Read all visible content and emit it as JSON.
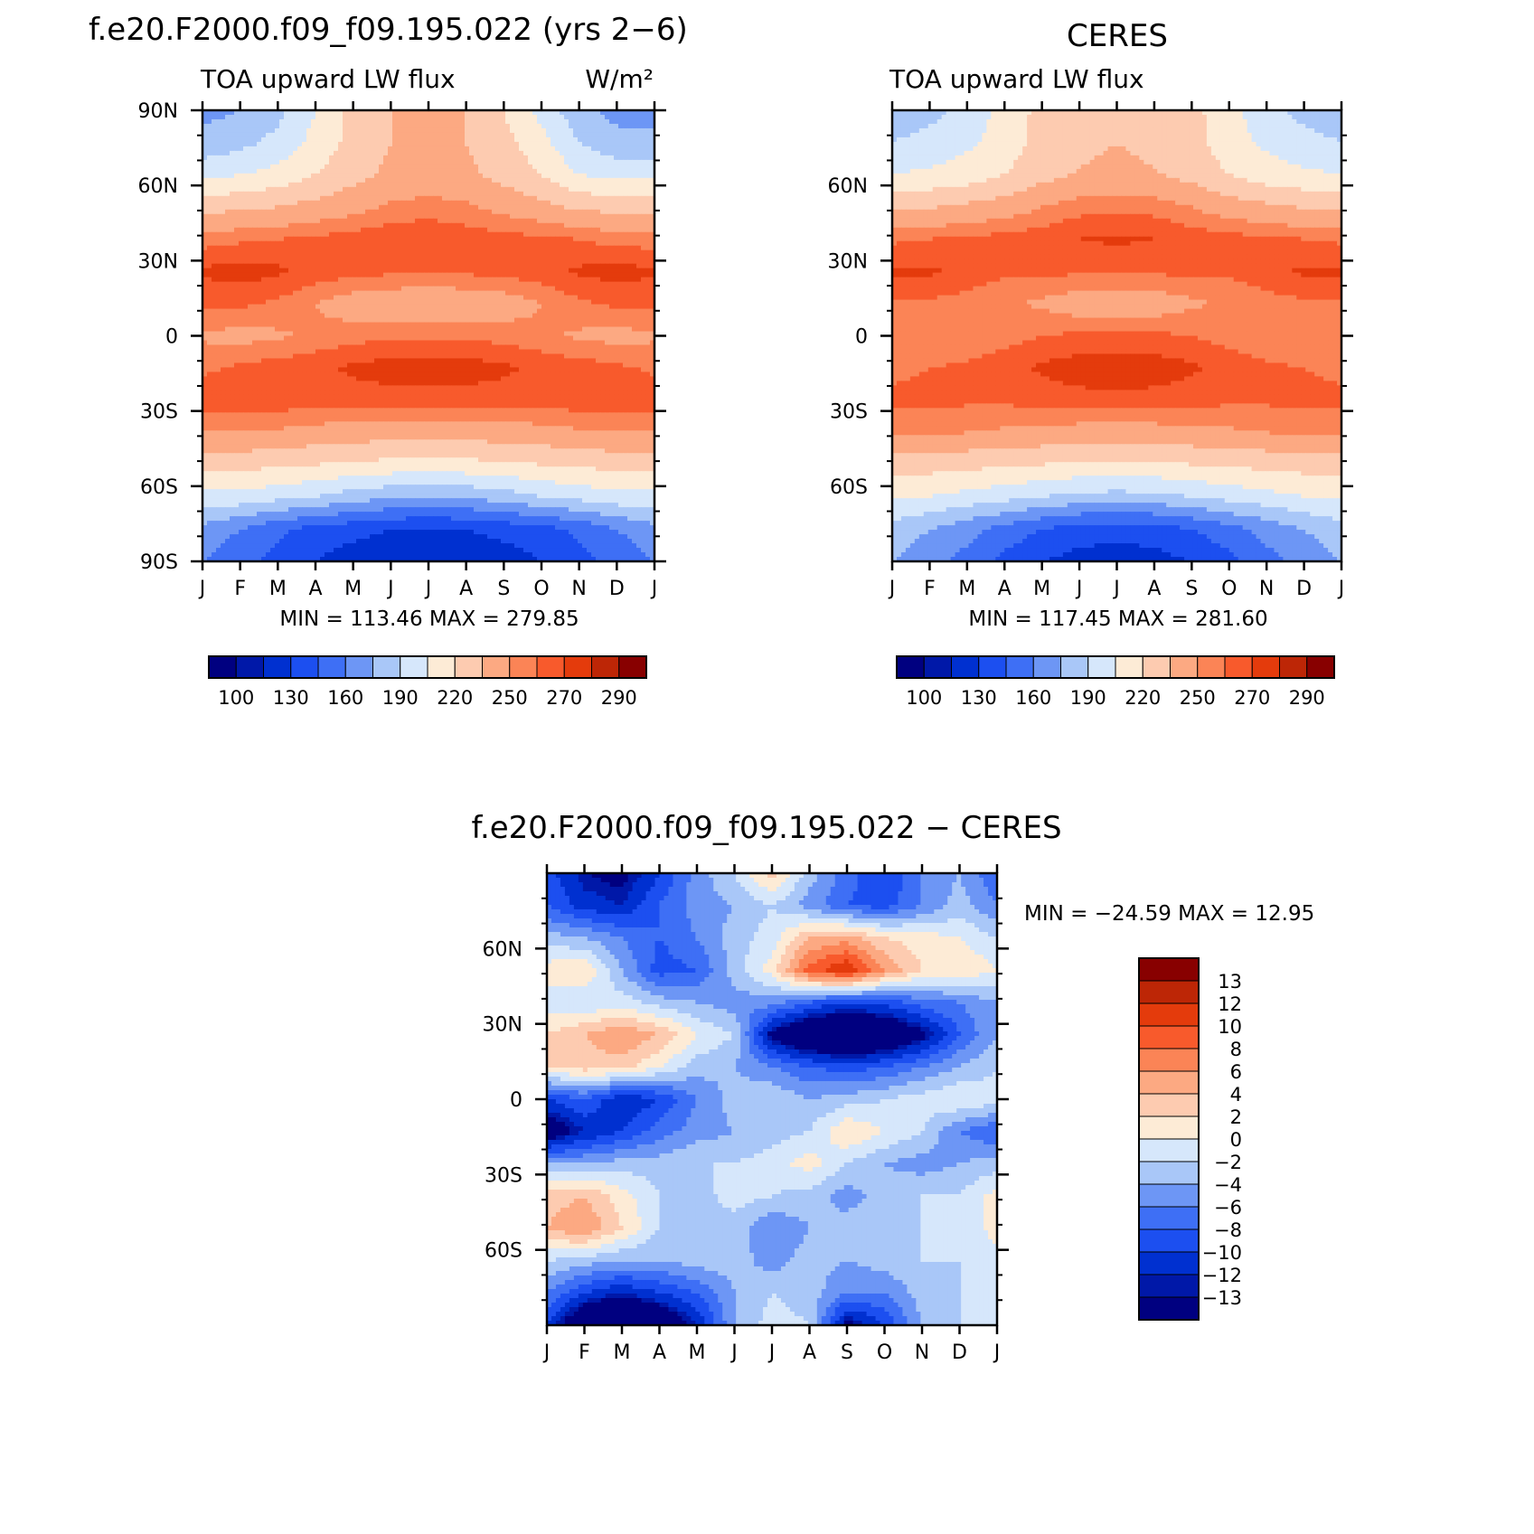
{
  "panels": [
    {
      "title": "f.e20.F2000.f09_f09.195.022 (yrs 2−6)",
      "left_label": "TOA upward LW flux",
      "units": "W/m²",
      "minmax": "MIN = 113.46 MAX = 279.85"
    },
    {
      "title": "CERES",
      "left_label": "TOA upward LW flux",
      "units": "",
      "minmax": "MIN = 117.45 MAX = 281.60"
    },
    {
      "title": "f.e20.F2000.f09_f09.195.022 − CERES",
      "left_label": "",
      "units": "",
      "minmax": "MIN = −24.59 MAX =   12.95"
    }
  ],
  "chart_data": [
    {
      "type": "heatmap",
      "title": "f.e20.F2000.f09_f09.195.022 (yrs 2−6)",
      "xlabel": "",
      "ylabel": "",
      "x_ticks": [
        "J",
        "F",
        "M",
        "A",
        "M",
        "J",
        "J",
        "A",
        "S",
        "O",
        "N",
        "D",
        "J"
      ],
      "y_ticks": [
        "90N",
        "60N",
        "30N",
        "0",
        "30S",
        "60S",
        "90S"
      ],
      "ylim": [
        -90,
        90
      ],
      "x": [
        "J",
        "F",
        "M",
        "A",
        "M",
        "J",
        "J",
        "A",
        "S",
        "O",
        "N",
        "D",
        "J"
      ],
      "y": [
        90,
        75,
        60,
        45,
        30,
        20,
        10,
        0,
        -10,
        -20,
        -30,
        -45,
        -60,
        -75,
        -90
      ],
      "z": [
        [
          170,
          175,
          185,
          205,
          225,
          235,
          240,
          235,
          220,
          200,
          180,
          170,
          170
        ],
        [
          180,
          185,
          195,
          210,
          225,
          235,
          240,
          235,
          225,
          210,
          190,
          180,
          180
        ],
        [
          200,
          205,
          210,
          220,
          230,
          238,
          240,
          238,
          230,
          220,
          205,
          200,
          200
        ],
        [
          230,
          232,
          235,
          240,
          245,
          252,
          255,
          252,
          245,
          240,
          232,
          230,
          230
        ],
        [
          255,
          258,
          260,
          262,
          265,
          268,
          268,
          266,
          264,
          262,
          260,
          256,
          255
        ],
        [
          272,
          275,
          272,
          266,
          264,
          262,
          262,
          262,
          264,
          266,
          272,
          274,
          272
        ],
        [
          262,
          262,
          258,
          250,
          243,
          240,
          238,
          240,
          243,
          250,
          258,
          262,
          262
        ],
        [
          248,
          246,
          248,
          252,
          256,
          258,
          258,
          258,
          256,
          252,
          248,
          246,
          248
        ],
        [
          258,
          262,
          265,
          268,
          272,
          275,
          276,
          275,
          272,
          268,
          265,
          262,
          258
        ],
        [
          266,
          266,
          266,
          265,
          265,
          266,
          266,
          266,
          265,
          265,
          266,
          268,
          266
        ],
        [
          250,
          250,
          248,
          245,
          243,
          242,
          242,
          242,
          243,
          245,
          248,
          250,
          250
        ],
        [
          225,
          225,
          222,
          220,
          218,
          215,
          214,
          215,
          218,
          220,
          222,
          225,
          225
        ],
        [
          200,
          200,
          195,
          190,
          182,
          178,
          176,
          178,
          182,
          190,
          195,
          200,
          200
        ],
        [
          170,
          160,
          148,
          140,
          135,
          130,
          128,
          130,
          135,
          140,
          148,
          160,
          170
        ],
        [
          160,
          150,
          140,
          130,
          122,
          118,
          116,
          118,
          122,
          130,
          140,
          150,
          160
        ]
      ],
      "colorbar_levels": [
        100,
        115,
        130,
        145,
        160,
        175,
        190,
        205,
        220,
        235,
        250,
        260,
        270,
        280,
        290
      ],
      "colorbar_labels": [
        "100",
        "130",
        "160",
        "190",
        "220",
        "250",
        "270",
        "290"
      ]
    },
    {
      "type": "heatmap",
      "title": "CERES",
      "xlabel": "",
      "ylabel": "",
      "x_ticks": [
        "J",
        "F",
        "M",
        "A",
        "M",
        "J",
        "J",
        "A",
        "S",
        "O",
        "N",
        "D",
        "J"
      ],
      "y_ticks": [
        "60N",
        "30N",
        "0",
        "30S",
        "60S"
      ],
      "ylim": [
        -90,
        90
      ],
      "x": [
        "J",
        "F",
        "M",
        "A",
        "M",
        "J",
        "J",
        "A",
        "S",
        "O",
        "N",
        "D",
        "J"
      ],
      "y": [
        90,
        75,
        60,
        45,
        30,
        20,
        10,
        0,
        -10,
        -20,
        -30,
        -45,
        -60,
        -75,
        -90
      ],
      "z": [
        [
          180,
          185,
          195,
          210,
          225,
          232,
          235,
          232,
          225,
          210,
          195,
          185,
          180
        ],
        [
          190,
          195,
          202,
          212,
          225,
          232,
          235,
          232,
          225,
          212,
          202,
          195,
          190
        ],
        [
          205,
          208,
          212,
          220,
          230,
          236,
          238,
          236,
          230,
          220,
          212,
          208,
          205
        ],
        [
          232,
          234,
          238,
          242,
          250,
          256,
          258,
          256,
          250,
          242,
          238,
          234,
          232
        ],
        [
          258,
          260,
          262,
          264,
          266,
          270,
          272,
          270,
          266,
          264,
          262,
          260,
          258
        ],
        [
          272,
          272,
          266,
          262,
          262,
          262,
          262,
          262,
          262,
          262,
          266,
          272,
          272
        ],
        [
          258,
          258,
          256,
          252,
          248,
          242,
          240,
          242,
          248,
          252,
          256,
          258,
          258
        ],
        [
          250,
          250,
          252,
          256,
          260,
          262,
          262,
          262,
          260,
          256,
          252,
          250,
          250
        ],
        [
          258,
          260,
          262,
          266,
          272,
          276,
          278,
          276,
          272,
          266,
          262,
          260,
          258
        ],
        [
          262,
          262,
          262,
          262,
          264,
          266,
          266,
          266,
          264,
          262,
          262,
          262,
          262
        ],
        [
          252,
          252,
          250,
          248,
          246,
          244,
          244,
          244,
          246,
          248,
          250,
          252,
          252
        ],
        [
          226,
          226,
          224,
          222,
          220,
          218,
          218,
          218,
          220,
          222,
          224,
          226,
          226
        ],
        [
          205,
          205,
          200,
          195,
          190,
          185,
          184,
          185,
          190,
          195,
          200,
          205,
          205
        ],
        [
          185,
          175,
          165,
          155,
          145,
          138,
          136,
          138,
          145,
          155,
          165,
          175,
          185
        ],
        [
          175,
          165,
          155,
          140,
          130,
          124,
          122,
          124,
          130,
          140,
          155,
          165,
          175
        ]
      ],
      "colorbar_levels": [
        100,
        115,
        130,
        145,
        160,
        175,
        190,
        205,
        220,
        235,
        250,
        260,
        270,
        280,
        290
      ],
      "colorbar_labels": [
        "100",
        "130",
        "160",
        "190",
        "220",
        "250",
        "270",
        "290"
      ]
    },
    {
      "type": "heatmap",
      "title": "f.e20.F2000.f09_f09.195.022 − CERES",
      "xlabel": "",
      "ylabel": "",
      "x_ticks": [
        "J",
        "F",
        "M",
        "A",
        "M",
        "J",
        "J",
        "A",
        "S",
        "O",
        "N",
        "D",
        "J"
      ],
      "y_ticks": [
        "60N",
        "30N",
        "0",
        "30S",
        "60S"
      ],
      "ylim": [
        -90,
        90
      ],
      "x": [
        "J",
        "F",
        "M",
        "A",
        "M",
        "J",
        "J",
        "A",
        "S",
        "O",
        "N",
        "D",
        "J"
      ],
      "y": [
        90,
        75,
        60,
        45,
        30,
        20,
        10,
        0,
        -10,
        -20,
        -30,
        -45,
        -60,
        -75,
        -90
      ],
      "z": [
        [
          -9,
          -13,
          -14,
          -10,
          -5,
          -2,
          3,
          -3,
          -7,
          -10,
          -6,
          -4,
          -8
        ],
        [
          -8,
          -11,
          -12,
          -8,
          -5,
          -4,
          -2,
          -5,
          -8,
          -9,
          -6,
          -3,
          -6
        ],
        [
          -3,
          -4,
          -6,
          -8,
          -6,
          -3,
          -1,
          4,
          5,
          2,
          1,
          0,
          -2
        ],
        [
          1,
          2,
          -4,
          -9,
          -8,
          -3,
          1,
          9,
          12,
          6,
          2,
          2,
          0
        ],
        [
          -1,
          -2,
          -1,
          -3,
          -4,
          -5,
          -5,
          -8,
          -10,
          -9,
          -7,
          -6,
          -4
        ],
        [
          2,
          4,
          6,
          4,
          0,
          -2,
          -14,
          -18,
          -20,
          -18,
          -14,
          -8,
          -4
        ],
        [
          2,
          3,
          3,
          0,
          -3,
          -4,
          -6,
          -8,
          -9,
          -8,
          -6,
          -4,
          -2
        ],
        [
          -10,
          -8,
          -12,
          -10,
          -6,
          -3,
          -2,
          -4,
          -3,
          -2,
          -1,
          0,
          -1
        ],
        [
          -16,
          -12,
          -10,
          -7,
          -5,
          -4,
          -3,
          -2,
          2,
          0,
          -2,
          -6,
          -8
        ],
        [
          -4,
          -4,
          -3,
          -3,
          -2,
          -2,
          -1,
          1,
          -2,
          -4,
          -5,
          -4,
          -3
        ],
        [
          3,
          4,
          1,
          -2,
          -3,
          -1,
          -2,
          -3,
          -5,
          -3,
          -2,
          -2,
          1
        ],
        [
          4,
          6,
          2,
          -2,
          -3,
          -3,
          -6,
          -4,
          -3,
          -2,
          -2,
          -2,
          1
        ],
        [
          -2,
          -3,
          -4,
          -4,
          -3,
          -3,
          -5,
          -3,
          -4,
          -3,
          -2,
          -2,
          -1
        ],
        [
          -6,
          -10,
          -12,
          -10,
          -8,
          -4,
          -2,
          -3,
          -6,
          -6,
          -3,
          -2,
          -1
        ],
        [
          -10,
          -18,
          -22,
          -18,
          -12,
          -4,
          -1,
          -2,
          -14,
          -10,
          -4,
          -2,
          -2
        ]
      ],
      "colorbar_levels": [
        -13,
        -12,
        -10,
        -8,
        -6,
        -4,
        -2,
        0,
        2,
        4,
        6,
        8,
        10,
        12,
        13
      ],
      "colorbar_labels": [
        "13",
        "12",
        "10",
        "8",
        "6",
        "4",
        "2",
        "0",
        "−2",
        "−4",
        "−6",
        "−8",
        "−10",
        "−12",
        "−13"
      ]
    }
  ],
  "colors": {
    "abs_scale": [
      "#000080",
      "#0018a8",
      "#0030d0",
      "#1c4ff0",
      "#3e6ff5",
      "#6d96f5",
      "#a9c7f8",
      "#d6e7fb",
      "#fdebd6",
      "#fdcbb0",
      "#fca982",
      "#fb8456",
      "#f85a2c",
      "#e43b0c",
      "#bd2606",
      "#880000"
    ],
    "diff_scale": [
      "#000080",
      "#0018a8",
      "#0030d0",
      "#1c4ff0",
      "#3e6ff5",
      "#6d96f5",
      "#a9c7f8",
      "#d6e7fb",
      "#fdebd6",
      "#fdcbb0",
      "#fca982",
      "#fb8456",
      "#f85a2c",
      "#e43b0c",
      "#bd2606",
      "#880000"
    ]
  }
}
